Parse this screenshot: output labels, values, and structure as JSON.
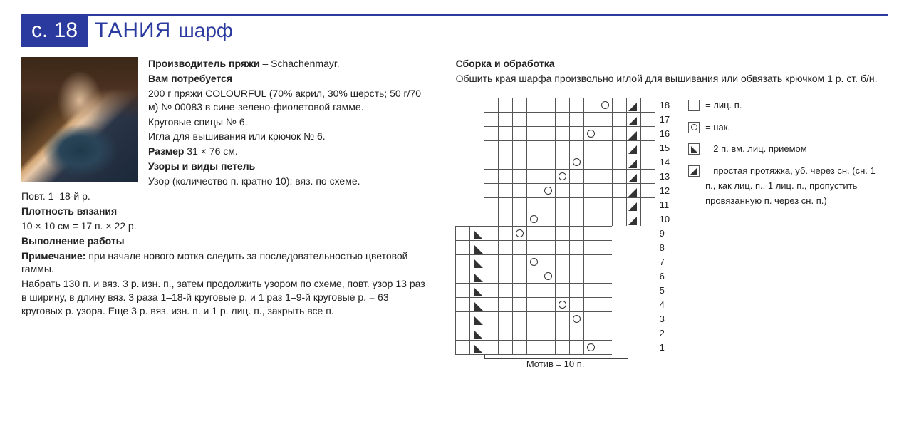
{
  "header": {
    "page_ref": "с. 18",
    "name": "ТАНИЯ",
    "item_type": "шарф"
  },
  "left": {
    "yarn_maker_label": "Производитель пряжи",
    "yarn_maker_value": " – Schachenmayr.",
    "need_title": "Вам потребуется",
    "need_text": "200 г пряжи COLOURFUL (70% акрил, 30% шерсть; 50 г/70 м) № 00083 в сине-зелено-фиолетовой гамме.",
    "needles": "Круговые спицы № 6.",
    "needle2": "Игла для вышивания или крючок № 6.",
    "size_label": "Размер",
    "size_value": " 31 × 76 см.",
    "patterns_title": "Узоры и виды петель",
    "pattern_desc": "Узор (количество п. кратно 10): вяз. по схеме.",
    "repeat": "Повт. 1–18-й р.",
    "density_title": "Плотность вязания",
    "density_value": "10 × 10 см = 17 п. × 22 р.",
    "work_title": "Выполнение работы",
    "note_label": "Примечание:",
    "note_text": " при начале нового мотка следить за последовательностью цветовой гаммы.",
    "work_text": "Набрать 130 п. и вяз. 3 р. изн. п., затем продолжить узором по схеме, повт. узор 13 раз в ширину, в длину вяз. 3 раза 1–18-й круговые р. и 1 раз 1–9-й круговые р. = 63 круговых р. узора. Еще 3 р. вяз. изн. п. и 1 р. лиц. п., закрыть все п."
  },
  "right": {
    "assembly_title": "Сборка и обработка",
    "assembly_text": "Обшить края шарфа произвольно иглой для вышивания или обвязать крючком 1 р. ст. б/н."
  },
  "chart": {
    "rows": 18,
    "cols": 14,
    "motif_label": "Мотив = 10 п.",
    "row_labels": [
      "18",
      "17",
      "16",
      "15",
      "14",
      "13",
      "12",
      "11",
      "10",
      "9",
      "8",
      "7",
      "6",
      "5",
      "4",
      "3",
      "2",
      "1"
    ],
    "cells": {
      "r18": {
        "11": "O",
        "13": "L"
      },
      "r17": {
        "13": "L"
      },
      "r16": {
        "10": "O",
        "13": "L"
      },
      "r15": {
        "13": "L"
      },
      "r14": {
        "9": "O",
        "13": "L"
      },
      "r13": {
        "8": "O",
        "13": "L"
      },
      "r12": {
        "7": "O",
        "13": "L"
      },
      "r11": {
        "13": "L"
      },
      "r10": {
        "6": "O",
        "13": "L"
      },
      "r9": {
        "2": "R",
        "5": "O"
      },
      "r8": {
        "2": "R"
      },
      "r7": {
        "2": "R",
        "6": "O"
      },
      "r6": {
        "2": "R",
        "7": "O"
      },
      "r5": {
        "2": "R"
      },
      "r4": {
        "2": "R",
        "8": "O"
      },
      "r3": {
        "2": "R",
        "9": "O"
      },
      "r2": {
        "2": "R"
      },
      "r1": {
        "2": "R",
        "10": "O"
      }
    },
    "border_cols_with_box": {
      "top_half": [
        12,
        13
      ],
      "bottom_half": [
        1,
        2
      ]
    }
  },
  "legend": {
    "k": "= лиц. п.",
    "yo": "= нак.",
    "k2tog": "= 2 п. вм. лиц. приемом",
    "ssk": "= простая протяжка, уб. через сн. (сн. 1 п., как лиц. п., 1 лиц. п., пропустить провязанную п. через сн. п.)"
  }
}
